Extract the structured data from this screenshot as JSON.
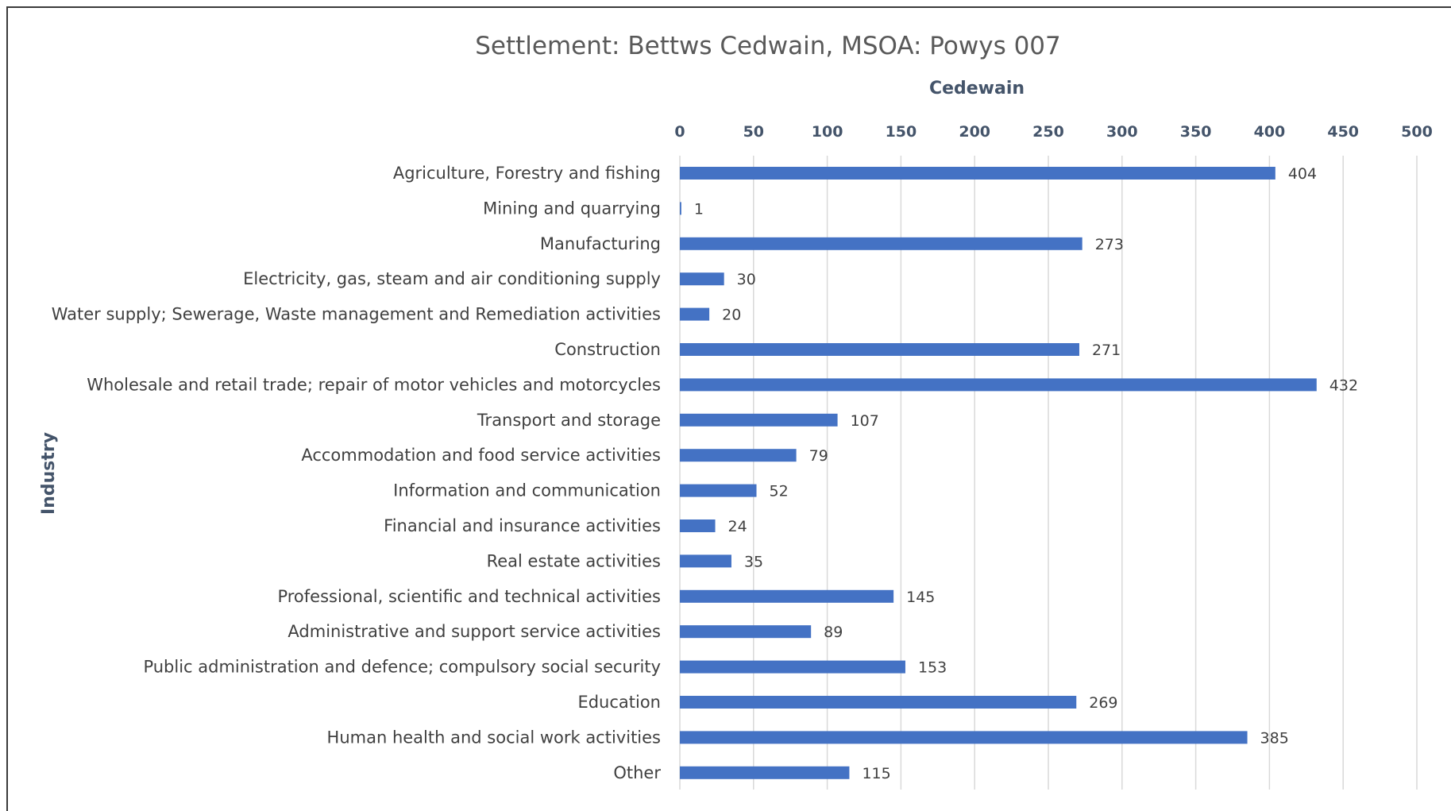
{
  "chart_data": {
    "type": "bar",
    "orientation": "horizontal",
    "title": "Settlement: Bettws Cedwain,  MSOA: Powys 007",
    "xlabel": "Cedewain",
    "ylabel": "Industry",
    "xlim": [
      0,
      500
    ],
    "x_ticks": [
      "0",
      "50",
      "100",
      "150",
      "200",
      "250",
      "300",
      "350",
      "400",
      "450",
      "500"
    ],
    "x_axis_position": "top",
    "grid": true,
    "bar_color": "#4472c4",
    "categories": [
      "Agriculture, Forestry and fishing",
      "Mining and quarrying",
      "Manufacturing",
      "Electricity, gas, steam and air conditioning supply",
      "Water supply; Sewerage, Waste management and Remediation activities",
      "Construction",
      "Wholesale and retail trade; repair of motor vehicles and motorcycles",
      "Transport and storage",
      "Accommodation and food service activities",
      "Information and communication",
      "Financial and insurance activities",
      "Real estate activities",
      "Professional, scientific and technical activities",
      "Administrative and support service activities",
      "Public administration and defence; compulsory social security",
      "Education",
      "Human health and social work activities",
      "Other"
    ],
    "values": [
      404,
      1,
      273,
      30,
      20,
      271,
      432,
      107,
      79,
      52,
      24,
      35,
      145,
      89,
      153,
      269,
      385,
      115
    ],
    "data_labels": [
      "404",
      "1",
      "273",
      "30",
      "20",
      "271",
      "432",
      "107",
      "79",
      "52",
      "24",
      "35",
      "145",
      "89",
      "153",
      "269",
      "385",
      "115"
    ]
  }
}
